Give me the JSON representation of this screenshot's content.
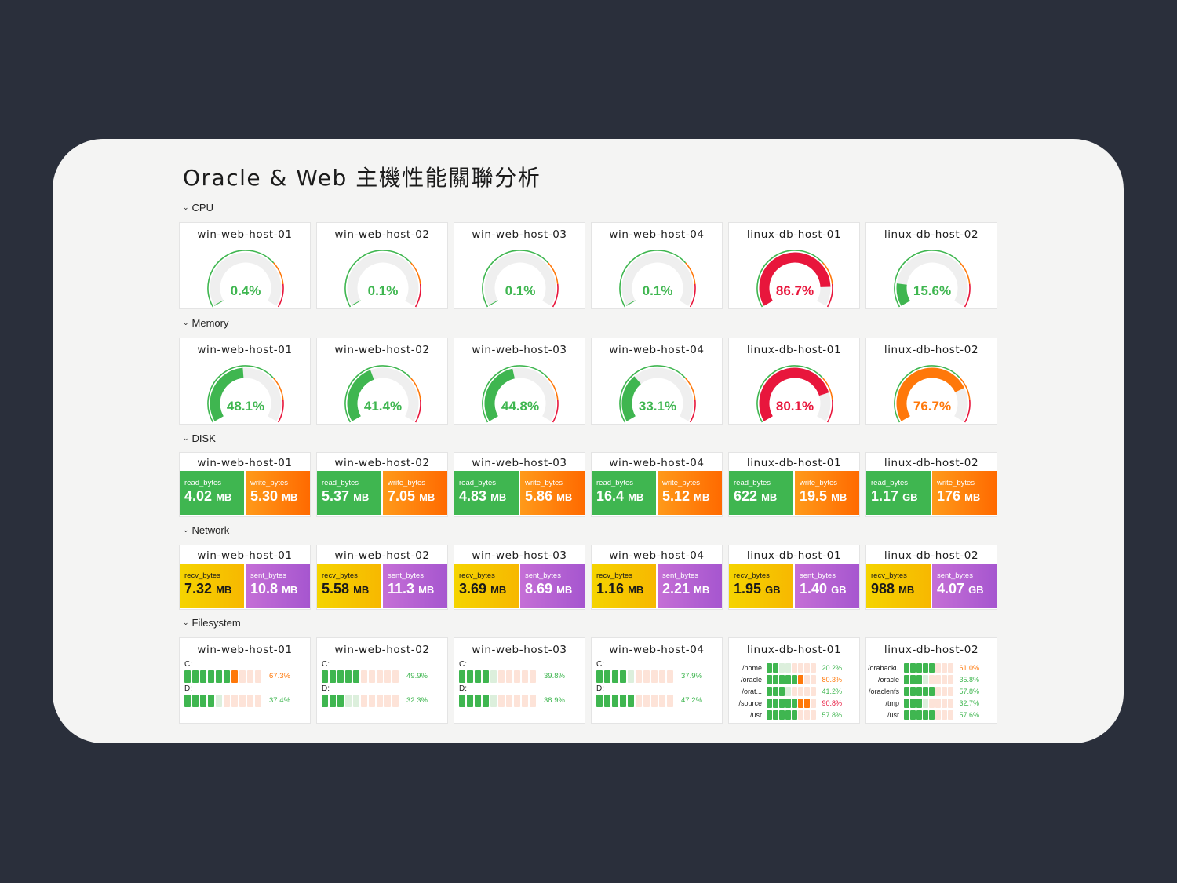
{
  "title": "Oracle & Web 主機性能關聯分析",
  "sections": {
    "cpu": "CPU",
    "memory": "Memory",
    "disk": "DISK",
    "network": "Network",
    "filesystem": "Filesystem"
  },
  "colors": {
    "green": "#3fb650",
    "orange": "#ff780a",
    "red": "#e8163c",
    "track": "#efefef"
  },
  "cpu": [
    {
      "host": "win-web-host-01",
      "value": 0.4,
      "display": "0.4%",
      "status": "green"
    },
    {
      "host": "win-web-host-02",
      "value": 0.1,
      "display": "0.1%",
      "status": "green"
    },
    {
      "host": "win-web-host-03",
      "value": 0.1,
      "display": "0.1%",
      "status": "green"
    },
    {
      "host": "win-web-host-04",
      "value": 0.1,
      "display": "0.1%",
      "status": "green"
    },
    {
      "host": "linux-db-host-01",
      "value": 86.7,
      "display": "86.7%",
      "status": "red"
    },
    {
      "host": "linux-db-host-02",
      "value": 15.6,
      "display": "15.6%",
      "status": "green"
    }
  ],
  "memory": [
    {
      "host": "win-web-host-01",
      "value": 48.1,
      "display": "48.1%",
      "status": "green"
    },
    {
      "host": "win-web-host-02",
      "value": 41.4,
      "display": "41.4%",
      "status": "green"
    },
    {
      "host": "win-web-host-03",
      "value": 44.8,
      "display": "44.8%",
      "status": "green"
    },
    {
      "host": "win-web-host-04",
      "value": 33.1,
      "display": "33.1%",
      "status": "green"
    },
    {
      "host": "linux-db-host-01",
      "value": 80.1,
      "display": "80.1%",
      "status": "red"
    },
    {
      "host": "linux-db-host-02",
      "value": 76.7,
      "display": "76.7%",
      "status": "orange"
    }
  ],
  "disk": [
    {
      "host": "win-web-host-01",
      "read_label": "read_bytes",
      "read": "4.02",
      "read_unit": "MB",
      "write_label": "write_bytes",
      "write": "5.30",
      "write_unit": "MB"
    },
    {
      "host": "win-web-host-02",
      "read_label": "read_bytes",
      "read": "5.37",
      "read_unit": "MB",
      "write_label": "write_bytes",
      "write": "7.05",
      "write_unit": "MB"
    },
    {
      "host": "win-web-host-03",
      "read_label": "read_bytes",
      "read": "4.83",
      "read_unit": "MB",
      "write_label": "write_bytes",
      "write": "5.86",
      "write_unit": "MB"
    },
    {
      "host": "win-web-host-04",
      "read_label": "read_bytes",
      "read": "16.4",
      "read_unit": "MB",
      "write_label": "write_bytes",
      "write": "5.12",
      "write_unit": "MB"
    },
    {
      "host": "linux-db-host-01",
      "read_label": "read_bytes",
      "read": "622",
      "read_unit": "MB",
      "write_label": "write_bytes",
      "write": "19.5",
      "write_unit": "MB"
    },
    {
      "host": "linux-db-host-02",
      "read_label": "read_bytes",
      "read": "1.17",
      "read_unit": "GB",
      "write_label": "write_bytes",
      "write": "176",
      "write_unit": "MB"
    }
  ],
  "network": [
    {
      "host": "win-web-host-01",
      "recv_label": "recv_bytes",
      "recv": "7.32",
      "recv_unit": "MB",
      "sent_label": "sent_bytes",
      "sent": "10.8",
      "sent_unit": "MB"
    },
    {
      "host": "win-web-host-02",
      "recv_label": "recv_bytes",
      "recv": "5.58",
      "recv_unit": "MB",
      "sent_label": "sent_bytes",
      "sent": "11.3",
      "sent_unit": "MB"
    },
    {
      "host": "win-web-host-03",
      "recv_label": "recv_bytes",
      "recv": "3.69",
      "recv_unit": "MB",
      "sent_label": "sent_bytes",
      "sent": "8.69",
      "sent_unit": "MB"
    },
    {
      "host": "win-web-host-04",
      "recv_label": "recv_bytes",
      "recv": "1.16",
      "recv_unit": "MB",
      "sent_label": "sent_bytes",
      "sent": "2.21",
      "sent_unit": "MB"
    },
    {
      "host": "linux-db-host-01",
      "recv_label": "recv_bytes",
      "recv": "1.95",
      "recv_unit": "GB",
      "sent_label": "sent_bytes",
      "sent": "1.40",
      "sent_unit": "GB"
    },
    {
      "host": "linux-db-host-02",
      "recv_label": "recv_bytes",
      "recv": "988",
      "recv_unit": "MB",
      "sent_label": "sent_bytes",
      "sent": "4.07",
      "sent_unit": "GB"
    }
  ],
  "filesystem_win": [
    {
      "host": "win-web-host-01",
      "drives": [
        {
          "name": "C:",
          "value": 67.3,
          "display": "67.3%",
          "status": "orange"
        },
        {
          "name": "D:",
          "value": 37.4,
          "display": "37.4%",
          "status": "green"
        }
      ]
    },
    {
      "host": "win-web-host-02",
      "drives": [
        {
          "name": "C:",
          "value": 49.9,
          "display": "49.9%",
          "status": "green"
        },
        {
          "name": "D:",
          "value": 32.3,
          "display": "32.3%",
          "status": "green"
        }
      ]
    },
    {
      "host": "win-web-host-03",
      "drives": [
        {
          "name": "C:",
          "value": 39.8,
          "display": "39.8%",
          "status": "green"
        },
        {
          "name": "D:",
          "value": 38.9,
          "display": "38.9%",
          "status": "green"
        }
      ]
    },
    {
      "host": "win-web-host-04",
      "drives": [
        {
          "name": "C:",
          "value": 37.9,
          "display": "37.9%",
          "status": "green"
        },
        {
          "name": "D:",
          "value": 47.2,
          "display": "47.2%",
          "status": "green"
        }
      ]
    }
  ],
  "filesystem_linux": [
    {
      "host": "linux-db-host-01",
      "mounts": [
        {
          "name": "/home",
          "value": 20.2,
          "display": "20.2%",
          "status": "green"
        },
        {
          "name": "/oracle",
          "value": 80.3,
          "display": "80.3%",
          "status": "orange"
        },
        {
          "name": "/orat...",
          "value": 41.2,
          "display": "41.2%",
          "status": "green"
        },
        {
          "name": "/source",
          "value": 90.8,
          "display": "90.8%",
          "status": "red"
        },
        {
          "name": "/usr",
          "value": 57.8,
          "display": "57.8%",
          "status": "green"
        }
      ]
    },
    {
      "host": "linux-db-host-02",
      "mounts": [
        {
          "name": "/orabackup",
          "value": 61.0,
          "display": "61.0%",
          "status": "orange"
        },
        {
          "name": "/oracle",
          "value": 35.8,
          "display": "35.8%",
          "status": "green"
        },
        {
          "name": "/oraclenfs",
          "value": 57.8,
          "display": "57.8%",
          "status": "green"
        },
        {
          "name": "/tmp",
          "value": 32.7,
          "display": "32.7%",
          "status": "green"
        },
        {
          "name": "/usr",
          "value": 57.6,
          "display": "57.6%",
          "status": "green"
        }
      ]
    }
  ]
}
